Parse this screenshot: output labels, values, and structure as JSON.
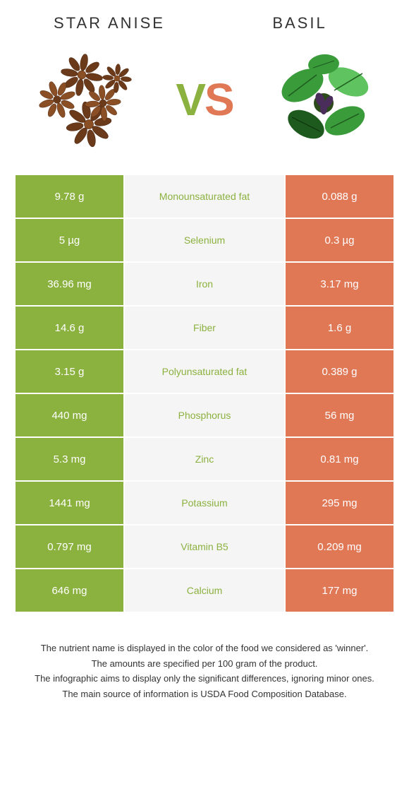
{
  "left": {
    "title": "STAR ANISE"
  },
  "right": {
    "title": "BASIL"
  },
  "vs": {
    "v": "V",
    "s": "S"
  },
  "colors": {
    "left_bg": "#8bb13f",
    "right_bg": "#e07856",
    "mid_bg": "#f5f5f5",
    "text_white": "#ffffff",
    "anise_dark": "#6b3a1a",
    "anise_mid": "#8b4f26",
    "basil_dark": "#1e5a1e",
    "basil_mid": "#3a9b3a",
    "basil_light": "#5fc45f",
    "basil_stem": "#2d4a1a"
  },
  "table": {
    "rows": [
      {
        "left": "9.78 g",
        "label": "Monounsaturated fat",
        "right": "0.088 g",
        "winner": "left"
      },
      {
        "left": "5 µg",
        "label": "Selenium",
        "right": "0.3 µg",
        "winner": "left"
      },
      {
        "left": "36.96 mg",
        "label": "Iron",
        "right": "3.17 mg",
        "winner": "left"
      },
      {
        "left": "14.6 g",
        "label": "Fiber",
        "right": "1.6 g",
        "winner": "left"
      },
      {
        "left": "3.15 g",
        "label": "Polyunsaturated fat",
        "right": "0.389 g",
        "winner": "left"
      },
      {
        "left": "440 mg",
        "label": "Phosphorus",
        "right": "56 mg",
        "winner": "left"
      },
      {
        "left": "5.3 mg",
        "label": "Zinc",
        "right": "0.81 mg",
        "winner": "left"
      },
      {
        "left": "1441 mg",
        "label": "Potassium",
        "right": "295 mg",
        "winner": "left"
      },
      {
        "left": "0.797 mg",
        "label": "Vitamin B5",
        "right": "0.209 mg",
        "winner": "left"
      },
      {
        "left": "646 mg",
        "label": "Calcium",
        "right": "177 mg",
        "winner": "left"
      }
    ]
  },
  "footer": {
    "line1": "The nutrient name is displayed in the color of the food we considered as 'winner'.",
    "line2": "The amounts are specified per 100 gram of the product.",
    "line3": "The infographic aims to display only the significant differences, ignoring minor ones.",
    "line4": "The main source of information is USDA Food Composition Database."
  }
}
